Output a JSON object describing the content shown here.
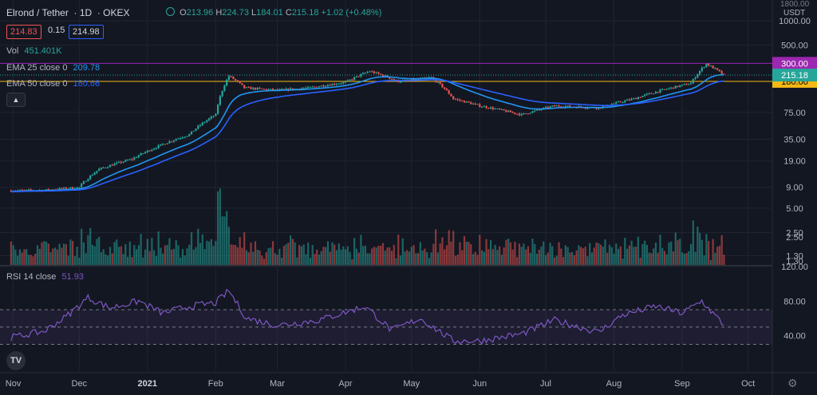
{
  "header": {
    "symbol": "Elrond / Tether",
    "interval": "1D",
    "exchange": "OKEX",
    "open_label": "O",
    "open": "213.96",
    "high_label": "H",
    "high": "224.73",
    "low_label": "L",
    "low": "184.01",
    "close_label": "C",
    "close": "215.18",
    "change": "+1.02 (+0.48%)",
    "bid": "214.83",
    "spread": "0.15",
    "ask": "214.98",
    "corner_top": "1800.00",
    "currency": "USDT"
  },
  "indicators": {
    "vol_label": "Vol",
    "vol_value": "451.401K",
    "ema25_label": "EMA 25 close 0",
    "ema25_value": "209.78",
    "ema50_label": "EMA 50 close 0",
    "ema50_value": "180.66",
    "rsi_label": "RSI 14 close",
    "rsi_value": "51.93"
  },
  "colors": {
    "background": "#131722",
    "up": "#26a69a",
    "down": "#ef5350",
    "ema25": "#2196f3",
    "ema50": "#2962ff",
    "rsi": "#7e57c2",
    "level_300": "#9c27b0",
    "level_180": "#f5b915"
  },
  "icons": {
    "collapse": "chevron-up-icon",
    "logo": "tradingview-logo",
    "settings": "gear-icon",
    "eye": "eye-icon"
  },
  "chart_data": {
    "type": "candlestick",
    "scale": "log",
    "price_axis_ticks": [
      "1000.00",
      "500.00",
      "300.00",
      "215.18",
      "180.00",
      "75.00",
      "35.00",
      "19.00",
      "9.00",
      "5.00",
      "2.50",
      "1.30"
    ],
    "price_ylim": [
      1.2,
      1500
    ],
    "time_axis_labels": [
      "Nov",
      "Dec",
      "2021",
      "Feb",
      "Mar",
      "Apr",
      "May",
      "Jun",
      "Jul",
      "Aug",
      "Sep",
      "Oct"
    ],
    "horizontal_levels": [
      {
        "label": "300.00",
        "value": 300
      },
      {
        "label": "180.00",
        "value": 180
      }
    ],
    "last_price_label": "215.18",
    "price_path": [
      [
        "2020-10-31",
        8.2
      ],
      [
        "2020-11-15",
        8.3
      ],
      [
        "2020-12-01",
        9.0
      ],
      [
        "2020-12-10",
        15
      ],
      [
        "2020-12-25",
        20
      ],
      [
        "2021-01-05",
        28
      ],
      [
        "2021-01-20",
        40
      ],
      [
        "2021-02-01",
        70
      ],
      [
        "2021-02-07",
        210
      ],
      [
        "2021-02-14",
        150
      ],
      [
        "2021-03-01",
        140
      ],
      [
        "2021-03-15",
        150
      ],
      [
        "2021-04-01",
        175
      ],
      [
        "2021-04-12",
        240
      ],
      [
        "2021-04-25",
        180
      ],
      [
        "2021-05-10",
        200
      ],
      [
        "2021-05-20",
        110
      ],
      [
        "2021-06-01",
        90
      ],
      [
        "2021-06-20",
        70
      ],
      [
        "2021-07-05",
        90
      ],
      [
        "2021-07-25",
        85
      ],
      [
        "2021-08-10",
        110
      ],
      [
        "2021-08-25",
        145
      ],
      [
        "2021-09-05",
        170
      ],
      [
        "2021-09-12",
        295
      ],
      [
        "2021-09-20",
        215.18
      ]
    ],
    "ema25_last": 209.78,
    "ema50_last": 180.66,
    "rsi": {
      "ticks": [
        "120.00",
        "80.00",
        "40.00"
      ],
      "ylim": [
        0,
        120
      ],
      "upper_band": 70,
      "lower_band": 30,
      "mid": 50,
      "last": 51.93,
      "path": [
        [
          "2020-10-31",
          38
        ],
        [
          "2020-11-15",
          45
        ],
        [
          "2020-11-25",
          62
        ],
        [
          "2020-12-05",
          84
        ],
        [
          "2020-12-15",
          72
        ],
        [
          "2020-12-28",
          80
        ],
        [
          "2021-01-08",
          66
        ],
        [
          "2021-01-20",
          74
        ],
        [
          "2021-02-01",
          78
        ],
        [
          "2021-02-07",
          92
        ],
        [
          "2021-02-15",
          60
        ],
        [
          "2021-03-01",
          52
        ],
        [
          "2021-03-20",
          58
        ],
        [
          "2021-04-10",
          74
        ],
        [
          "2021-04-22",
          46
        ],
        [
          "2021-05-05",
          60
        ],
        [
          "2021-05-20",
          34
        ],
        [
          "2021-06-01",
          34
        ],
        [
          "2021-06-20",
          42
        ],
        [
          "2021-07-05",
          58
        ],
        [
          "2021-07-25",
          44
        ],
        [
          "2021-08-05",
          64
        ],
        [
          "2021-08-20",
          74
        ],
        [
          "2021-09-01",
          66
        ],
        [
          "2021-09-10",
          80
        ],
        [
          "2021-09-20",
          52
        ]
      ]
    },
    "volume_ticks": [
      "2.50",
      "1.30"
    ]
  }
}
